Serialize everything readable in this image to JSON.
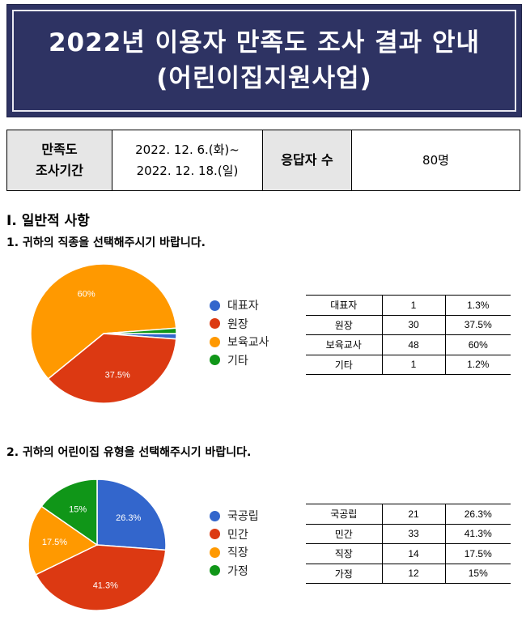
{
  "banner": {
    "line1": "2022년 이용자 만족도 조사 결과 안내",
    "line2": "(어린이집지원사업)"
  },
  "info_table": {
    "period_label_line1": "만족도",
    "period_label_line2": "조사기간",
    "period_line1": "2022. 12. 6.(화)~",
    "period_line2": "2022. 12. 18.(일)",
    "respondents_label": "응답자 수",
    "respondents_value": "80명"
  },
  "section": {
    "title": "Ⅰ. 일반적 사항"
  },
  "questions": [
    {
      "text": "1. 귀하의 직종을 선택해주시기 바랍니다.",
      "chart_data": {
        "type": "pie",
        "categories": [
          "대표자",
          "원장",
          "보육교사",
          "기타"
        ],
        "values": [
          1,
          30,
          48,
          1
        ],
        "colors": [
          "#3366cc",
          "#dc3912",
          "#ff9900",
          "#109618"
        ],
        "slice_labels": [
          "",
          "37.5%",
          "60%",
          ""
        ],
        "start_angle_deg": 90.0,
        "legend": "right"
      },
      "table": [
        {
          "label": "대표자",
          "count": "1",
          "percent": "1.3%"
        },
        {
          "label": "원장",
          "count": "30",
          "percent": "37.5%"
        },
        {
          "label": "보육교사",
          "count": "48",
          "percent": "60%"
        },
        {
          "label": "기타",
          "count": "1",
          "percent": "1.2%"
        }
      ]
    },
    {
      "text": "2. 귀하의 어린이집 유형을 선택해주시기 바랍니다.",
      "chart_data": {
        "type": "pie",
        "categories": [
          "국공립",
          "민간",
          "직장",
          "가정"
        ],
        "values": [
          21,
          33,
          14,
          12
        ],
        "colors": [
          "#3366cc",
          "#dc3912",
          "#ff9900",
          "#109618"
        ],
        "slice_labels": [
          "26.3%",
          "41.3%",
          "17.5%",
          "15%"
        ],
        "start_angle_deg": 0,
        "legend": "right"
      },
      "table": [
        {
          "label": "국공립",
          "count": "21",
          "percent": "26.3%"
        },
        {
          "label": "민간",
          "count": "33",
          "percent": "41.3%"
        },
        {
          "label": "직장",
          "count": "14",
          "percent": "17.5%"
        },
        {
          "label": "가정",
          "count": "12",
          "percent": "15%"
        }
      ]
    }
  ]
}
